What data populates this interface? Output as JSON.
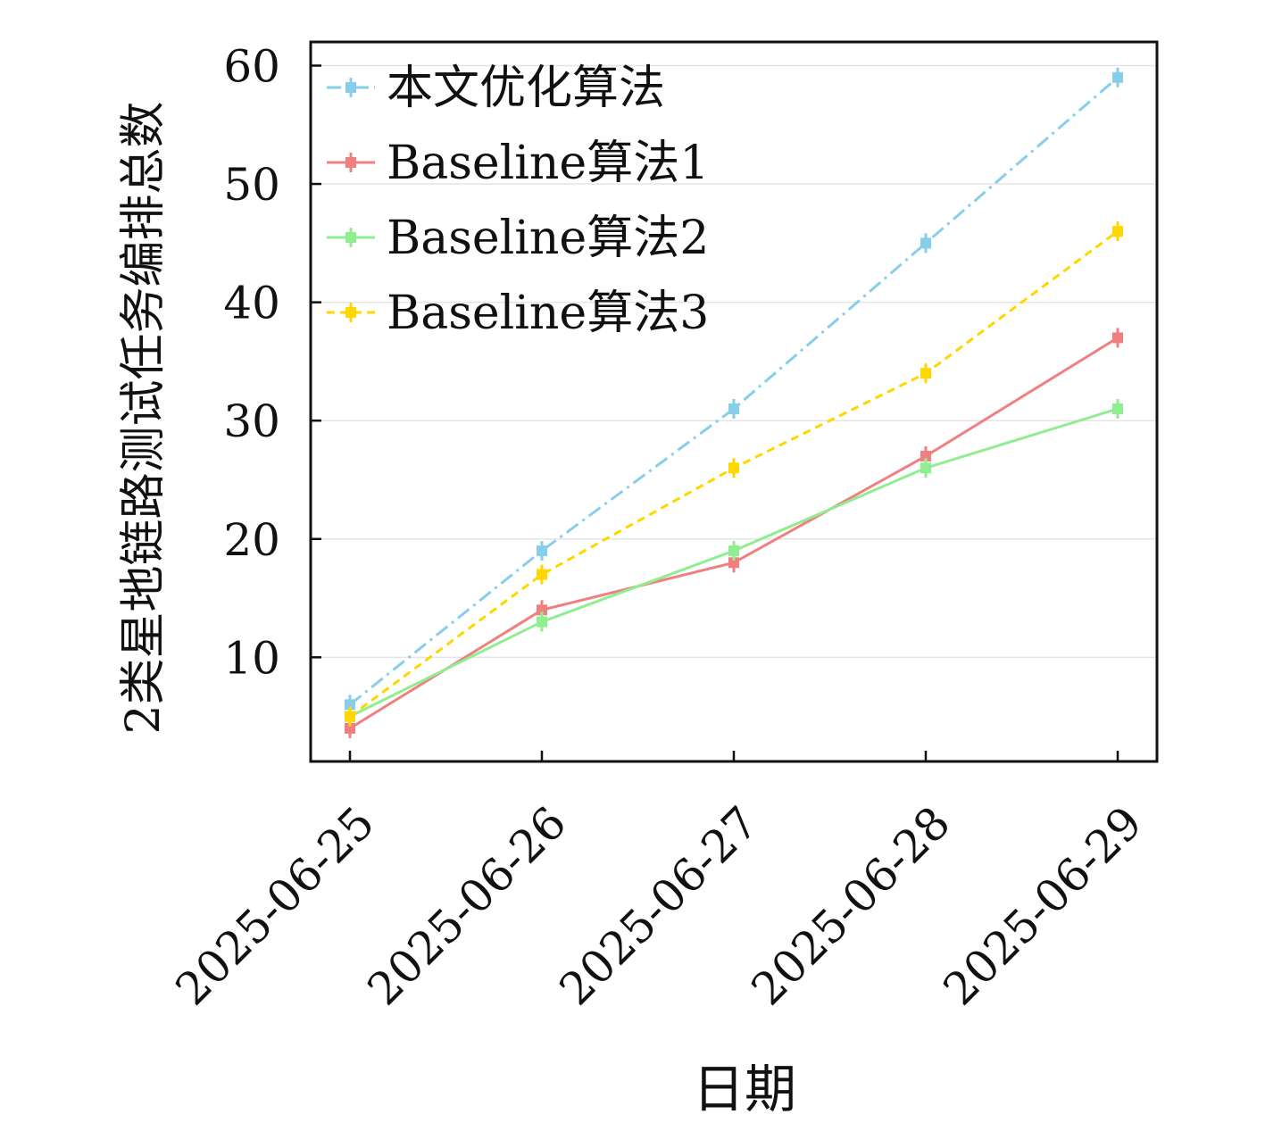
{
  "chart_data": {
    "type": "line",
    "title": "",
    "xlabel": "日期",
    "ylabel": "2类星地链路测试任务编排总数",
    "categories": [
      "2025-06-25",
      "2025-06-26",
      "2025-06-27",
      "2025-06-28",
      "2025-06-29"
    ],
    "yticks": [
      10,
      20,
      30,
      40,
      50,
      60
    ],
    "ylim": [
      1.2,
      62.0
    ],
    "grid": true,
    "legend_position": "top-left",
    "series": [
      {
        "name": "本文优化算法",
        "values": [
          6,
          19,
          31,
          45,
          59
        ],
        "color": "#87ceeb",
        "dash": "dashdot"
      },
      {
        "name": "Baseline算法1",
        "values": [
          4,
          14,
          18,
          27,
          37
        ],
        "color": "#f08080",
        "dash": "solid"
      },
      {
        "name": "Baseline算法2",
        "values": [
          5,
          13,
          19,
          26,
          31
        ],
        "color": "#90ee90",
        "dash": "solid"
      },
      {
        "name": "Baseline算法3",
        "values": [
          5,
          17,
          26,
          34,
          46
        ],
        "color": "#ffd700",
        "dash": "dashed"
      }
    ]
  }
}
